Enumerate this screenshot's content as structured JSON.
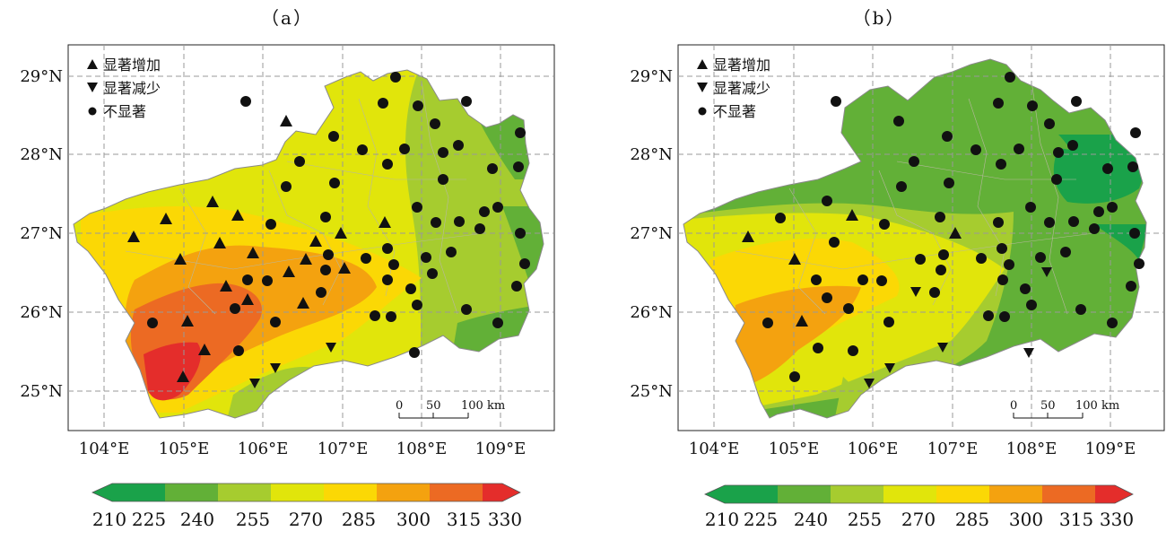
{
  "panels": [
    {
      "label": "（a）",
      "lon_ticks": [
        "104°E",
        "105°E",
        "106°E",
        "107°E",
        "108°E",
        "109°E"
      ],
      "lat_ticks": [
        "29°N",
        "28°N",
        "27°N",
        "26°N",
        "25°N"
      ],
      "legend": {
        "increase": "显著增加",
        "decrease": "显著减少",
        "none": "不显著"
      },
      "scalebar": {
        "ticks": [
          "0",
          "50",
          "100 km"
        ]
      },
      "colorbar": {
        "ticks": [
          "210",
          "225",
          "240",
          "255",
          "270",
          "285",
          "300",
          "315",
          "330"
        ]
      },
      "zones": "high values (300–330) in the southwest, 270–285 across the center, 240–255 in the east"
    },
    {
      "label": "（b）",
      "lon_ticks": [
        "104°E",
        "105°E",
        "106°E",
        "107°E",
        "108°E",
        "109°E"
      ],
      "lat_ticks": [
        "29°N",
        "28°N",
        "27°N",
        "26°N",
        "25°N"
      ],
      "legend": {
        "increase": "显著增加",
        "decrease": "显著减少",
        "none": "不显著"
      },
      "scalebar": {
        "ticks": [
          "0",
          "50",
          "100 km"
        ]
      },
      "colorbar": {
        "ticks": [
          "210",
          "225",
          "240",
          "255",
          "270",
          "285",
          "300",
          "315",
          "330"
        ]
      },
      "zones": "mostly 225–255 in north and east, 270–300 in the southwest"
    }
  ],
  "colorbar_colors": [
    "#1aa24a",
    "#62b037",
    "#a6cc2f",
    "#e1e50b",
    "#fbd805",
    "#f4a20f",
    "#ec6a23",
    "#e42d2b"
  ],
  "station_legend_shapes": {
    "increase": "triangle-up",
    "decrease": "triangle-down",
    "none": "circle"
  }
}
